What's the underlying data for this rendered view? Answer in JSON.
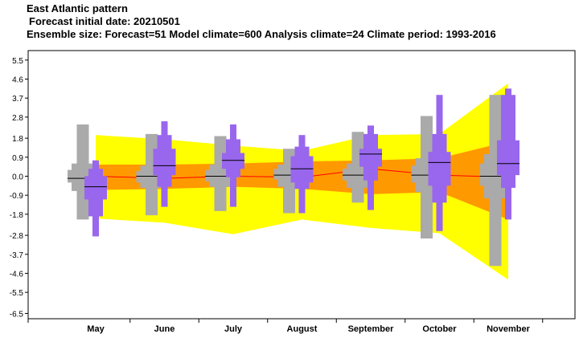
{
  "chart_data": {
    "type": "box",
    "title": "East Atlantic pattern",
    "subtitle_lines": [
      "Forecast initial date: 20210501",
      "Ensemble size: Forecast=51 Model climate=600 Analysis climate=24   Climate period: 1993-2016"
    ],
    "categories": [
      "May",
      "June",
      "July",
      "August",
      "September",
      "October",
      "November"
    ],
    "yticks": [
      "5.5",
      "4.6",
      "3.7",
      "2.8",
      "1.8",
      "0.9",
      "0.0",
      "-0.9",
      "-1.8",
      "-2.8",
      "-3.7",
      "-4.6",
      "-5.5",
      "-6.5"
    ],
    "ylim": [
      -6.75,
      5.95
    ],
    "grid": false,
    "colors": {
      "forecast": "#9966ee",
      "analysis": "#aaaaaa",
      "climate_outer": "#ffff00",
      "climate_inner": "#ff9900",
      "climate_median": "#ff0000",
      "median_mark": "#000000"
    },
    "model_climate": {
      "outer_upper": [
        1.95,
        1.75,
        1.45,
        1.2,
        1.95,
        2.0,
        4.4
      ],
      "outer_lower": [
        -2.0,
        -2.2,
        -2.75,
        -2.05,
        -2.45,
        -2.7,
        -4.9
      ],
      "inner_upper": [
        0.55,
        0.55,
        0.6,
        0.7,
        0.75,
        0.85,
        1.65
      ],
      "inner_lower": [
        -0.65,
        -0.6,
        -0.5,
        -0.6,
        -0.85,
        -0.75,
        -2.05
      ],
      "median": [
        0.0,
        -0.1,
        0.0,
        -0.05,
        0.35,
        0.05,
        -0.05
      ]
    },
    "analysis_climate": [
      {
        "min": -2.05,
        "p10": -0.7,
        "p25": -0.3,
        "median": -0.1,
        "p75": 0.3,
        "p90": 0.6,
        "max": 2.45
      },
      {
        "min": -1.85,
        "p10": -0.55,
        "p25": -0.3,
        "median": 0.0,
        "p75": 0.25,
        "p90": 0.5,
        "max": 2.0
      },
      {
        "min": -1.65,
        "p10": -0.5,
        "p25": -0.25,
        "median": 0.0,
        "p75": 0.3,
        "p90": 0.55,
        "max": 1.9
      },
      {
        "min": -1.75,
        "p10": -0.5,
        "p25": -0.15,
        "median": 0.05,
        "p75": 0.35,
        "p90": 0.55,
        "max": 1.3
      },
      {
        "min": -1.25,
        "p10": -0.55,
        "p25": -0.2,
        "median": 0.05,
        "p75": 0.35,
        "p90": 0.6,
        "max": 2.1
      },
      {
        "min": -2.95,
        "p10": -0.75,
        "p25": -0.3,
        "median": 0.05,
        "p75": 0.5,
        "p90": 0.85,
        "max": 2.85
      },
      {
        "min": -4.25,
        "p10": -1.05,
        "p25": -0.45,
        "median": 0.0,
        "p75": 0.6,
        "p90": 1.05,
        "max": 3.85
      }
    ],
    "forecast": [
      {
        "min": -2.85,
        "p10": -1.9,
        "p25": -1.1,
        "median": -0.5,
        "p75": 0.0,
        "p90": 0.35,
        "max": 0.75
      },
      {
        "min": -1.45,
        "p10": -0.5,
        "p25": 0.05,
        "median": 0.5,
        "p75": 1.3,
        "p90": 1.95,
        "max": 2.6
      },
      {
        "min": -1.45,
        "p10": -0.05,
        "p25": 0.35,
        "median": 0.75,
        "p75": 1.1,
        "p90": 1.75,
        "max": 2.45
      },
      {
        "min": -1.75,
        "p10": -0.6,
        "p25": -0.3,
        "median": 0.35,
        "p75": 0.95,
        "p90": 1.4,
        "max": 1.95
      },
      {
        "min": -1.6,
        "p10": -0.2,
        "p25": 0.45,
        "median": 1.05,
        "p75": 1.3,
        "p90": 2.0,
        "max": 2.4
      },
      {
        "min": -2.6,
        "p10": -1.25,
        "p25": -0.45,
        "median": 0.65,
        "p75": 1.15,
        "p90": 2.0,
        "max": 3.85
      },
      {
        "min": -2.05,
        "p10": -0.55,
        "p25": 0.05,
        "median": 0.6,
        "p75": 1.7,
        "p90": 3.85,
        "max": 4.15
      }
    ]
  }
}
